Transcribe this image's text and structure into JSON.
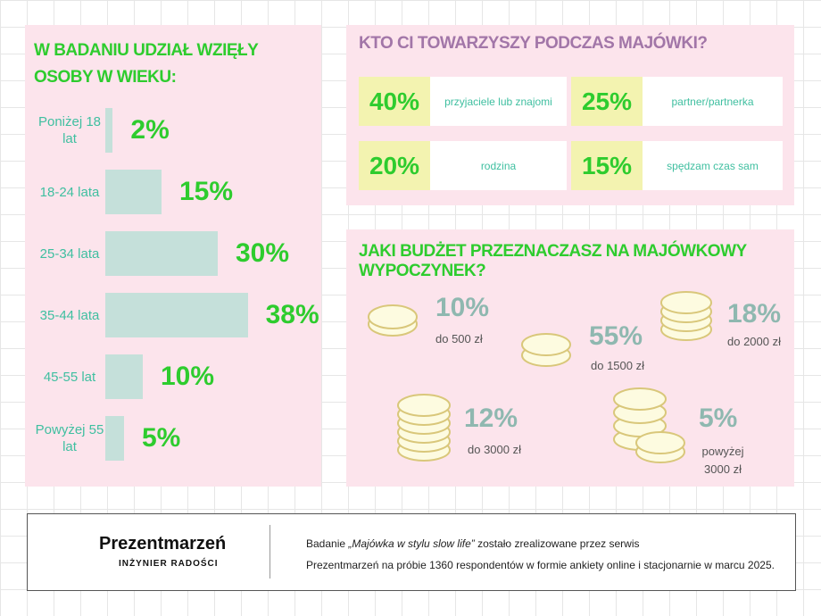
{
  "age_panel": {
    "title": "W BADANIU UDZIAŁ WZIĘŁY OSOBY W WIEKU:",
    "groups": [
      {
        "label": "Poniżej 18 lat",
        "value": 2,
        "value_label": "2%"
      },
      {
        "label": "18-24 lata",
        "value": 15,
        "value_label": "15%"
      },
      {
        "label": "25-34 lata",
        "value": 30,
        "value_label": "30%"
      },
      {
        "label": "35-44 lata",
        "value": 38,
        "value_label": "38%"
      },
      {
        "label": "45-55 lat",
        "value": 10,
        "value_label": "10%"
      },
      {
        "label": "Powyżej 55 lat",
        "value": 5,
        "value_label": "5%"
      }
    ]
  },
  "company_panel": {
    "title": "KTO CI TOWARZYSZY PODCZAS MAJÓWKI?",
    "items": [
      {
        "value_label": "40%",
        "label": "przyjaciele lub znajomi"
      },
      {
        "value_label": "25%",
        "label": "partner/partnerka"
      },
      {
        "value_label": "20%",
        "label": "rodzina"
      },
      {
        "value_label": "15%",
        "label": "spędzam czas sam"
      }
    ]
  },
  "budget_panel": {
    "title": "JAKI BUDŻET PRZEZNACZASZ NA MAJÓWKOWY WYPOCZYNEK?",
    "items": [
      {
        "value_label": "10%",
        "label": "do 500 zł"
      },
      {
        "value_label": "55%",
        "label": "do 1500 zł"
      },
      {
        "value_label": "18%",
        "label": "do 2000 zł"
      },
      {
        "value_label": "12%",
        "label": "do 3000 zł"
      },
      {
        "value_label": "5%",
        "label": "powyżej 3000 zł"
      }
    ]
  },
  "footer": {
    "logo": "Prezentmarzeń",
    "tagline": "INŻYNIER RADOŚCI",
    "text_before": "Badanie ",
    "text_italic": "„Majówka w stylu slow life”",
    "text_after": " zostało zrealizowane przez serwis",
    "line2": "Prezentmarzeń na próbie 1360 respondentów w formie ankiety online i stacjonarnie w marcu 2025."
  }
}
